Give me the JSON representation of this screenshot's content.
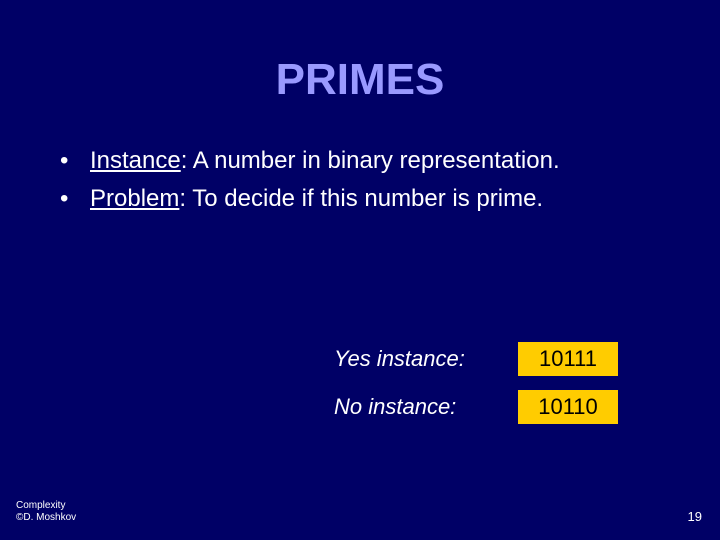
{
  "colors": {
    "background": "#000066",
    "title": "#9999ff",
    "text": "#ffffff",
    "box_bg": "#ffcc00",
    "box_text": "#000000"
  },
  "typography": {
    "title_fontsize": 44,
    "body_fontsize": 24,
    "example_fontsize": 22,
    "footer_fontsize": 10,
    "pagenum_fontsize": 13,
    "font_family": "Comic Sans MS"
  },
  "title": "PRIMES",
  "bullets": [
    {
      "label": "Instance",
      "rest": ": A number in binary representation."
    },
    {
      "label": "Problem",
      "rest": ": To decide if this number is prime."
    }
  ],
  "examples": [
    {
      "label": "Yes instance:",
      "value": "10111"
    },
    {
      "label": "No instance:",
      "value": "10110"
    }
  ],
  "footer": {
    "line1": "Complexity",
    "line2": "©D. Moshkov"
  },
  "page_number": "19"
}
